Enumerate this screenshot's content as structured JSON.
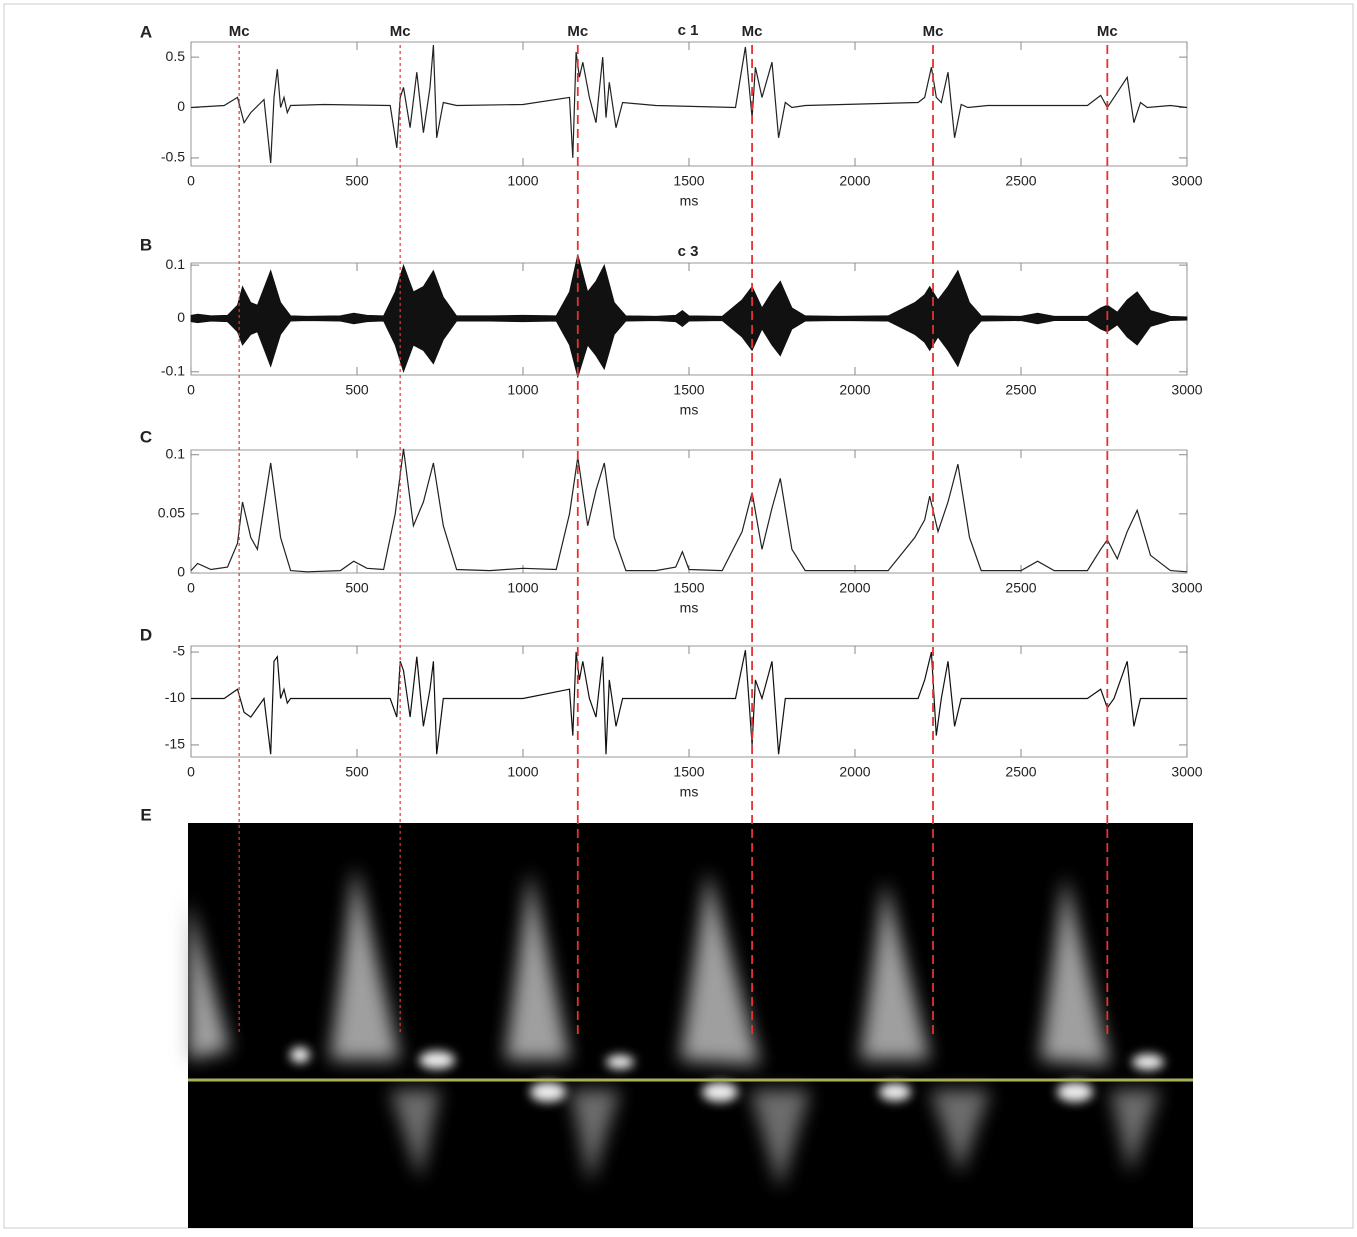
{
  "chart_data": [
    {
      "type": "line",
      "panel": "A",
      "title": "c 1",
      "xlabel": "ms",
      "x": [
        0,
        100,
        140,
        160,
        180,
        220,
        240,
        250,
        260,
        270,
        280,
        290,
        300,
        400,
        600,
        620,
        630,
        640,
        660,
        680,
        700,
        720,
        730,
        740,
        760,
        800,
        1000,
        1140,
        1150,
        1160,
        1170,
        1180,
        1200,
        1220,
        1240,
        1250,
        1260,
        1280,
        1300,
        1400,
        1640,
        1670,
        1690,
        1700,
        1720,
        1750,
        1770,
        1790,
        1810,
        1850,
        2190,
        2210,
        2230,
        2245,
        2260,
        2280,
        2300,
        2320,
        2340,
        2400,
        2700,
        2740,
        2760,
        2780,
        2820,
        2840,
        2860,
        2880,
        2950,
        3000
      ],
      "series": [
        {
          "color": "#222222",
          "values": [
            0,
            0.02,
            0.1,
            -0.15,
            -0.05,
            0.08,
            -0.55,
            0.1,
            0.38,
            0.0,
            0.1,
            -0.05,
            0.02,
            0.03,
            0.02,
            -0.4,
            0.1,
            0.2,
            -0.2,
            0.35,
            -0.25,
            0.2,
            0.62,
            -0.3,
            0.05,
            0.02,
            0.03,
            0.1,
            -0.5,
            0.55,
            0.3,
            0.45,
            0.1,
            -0.15,
            0.5,
            -0.1,
            0.25,
            -0.2,
            0.05,
            0.02,
            0.0,
            0.6,
            -0.1,
            0.4,
            0.1,
            0.45,
            -0.3,
            0.05,
            0.0,
            0.02,
            0.05,
            0.1,
            0.4,
            0.1,
            0.05,
            0.35,
            -0.3,
            0.03,
            0.0,
            0.02,
            0.02,
            0.12,
            0.0,
            0.1,
            0.3,
            -0.15,
            0.05,
            0.0,
            0.02,
            0.0
          ]
        }
      ],
      "xlim": [
        0,
        3000
      ],
      "xticks": [
        0,
        500,
        1000,
        1500,
        2000,
        2500,
        3000
      ],
      "ylim": [
        -0.58,
        0.65
      ],
      "yticks": [
        -0.5,
        0,
        0.5
      ]
    },
    {
      "type": "band",
      "panel": "B",
      "title": "c 3",
      "xlabel": "ms",
      "x": [
        0,
        20,
        60,
        110,
        140,
        155,
        180,
        200,
        240,
        270,
        300,
        350,
        450,
        490,
        530,
        580,
        615,
        640,
        670,
        700,
        730,
        760,
        800,
        900,
        1000,
        1100,
        1140,
        1165,
        1195,
        1220,
        1245,
        1275,
        1310,
        1400,
        1460,
        1480,
        1500,
        1600,
        1660,
        1690,
        1720,
        1750,
        1775,
        1810,
        1850,
        1950,
        2100,
        2180,
        2210,
        2225,
        2250,
        2280,
        2310,
        2345,
        2380,
        2500,
        2550,
        2600,
        2700,
        2740,
        2760,
        2790,
        2820,
        2850,
        2890,
        2950,
        3000
      ],
      "series": [
        {
          "color": "#111111",
          "values": [
            0.006,
            0.008,
            0.005,
            0.006,
            0.025,
            0.06,
            0.03,
            0.025,
            0.09,
            0.03,
            0.005,
            0.004,
            0.005,
            0.01,
            0.006,
            0.005,
            0.05,
            0.1,
            0.05,
            0.06,
            0.09,
            0.04,
            0.005,
            0.005,
            0.006,
            0.005,
            0.05,
            0.12,
            0.05,
            0.07,
            0.1,
            0.03,
            0.005,
            0.004,
            0.006,
            0.015,
            0.005,
            0.004,
            0.035,
            0.06,
            0.02,
            0.05,
            0.07,
            0.02,
            0.005,
            0.004,
            0.005,
            0.03,
            0.045,
            0.06,
            0.035,
            0.06,
            0.09,
            0.03,
            0.005,
            0.004,
            0.01,
            0.004,
            0.004,
            0.02,
            0.025,
            0.012,
            0.035,
            0.05,
            0.015,
            0.004,
            0.003
          ]
        },
        {
          "color": "#111111",
          "values": [
            -0.006,
            -0.008,
            -0.005,
            -0.006,
            -0.025,
            -0.05,
            -0.03,
            -0.025,
            -0.09,
            -0.03,
            -0.005,
            -0.004,
            -0.005,
            -0.01,
            -0.006,
            -0.005,
            -0.05,
            -0.1,
            -0.05,
            -0.06,
            -0.085,
            -0.04,
            -0.005,
            -0.005,
            -0.006,
            -0.005,
            -0.05,
            -0.11,
            -0.05,
            -0.07,
            -0.095,
            -0.03,
            -0.005,
            -0.004,
            -0.006,
            -0.015,
            -0.005,
            -0.004,
            -0.035,
            -0.06,
            -0.02,
            -0.05,
            -0.07,
            -0.02,
            -0.005,
            -0.004,
            -0.005,
            -0.03,
            -0.045,
            -0.06,
            -0.035,
            -0.06,
            -0.09,
            -0.03,
            -0.005,
            -0.004,
            -0.01,
            -0.004,
            -0.004,
            -0.02,
            -0.025,
            -0.012,
            -0.035,
            -0.05,
            -0.015,
            -0.004,
            -0.003
          ]
        }
      ],
      "xlim": [
        0,
        3000
      ],
      "xticks": [
        0,
        500,
        1000,
        1500,
        2000,
        2500,
        3000
      ],
      "ylim": [
        -0.106,
        0.104
      ],
      "yticks": [
        -0.1,
        0,
        0.1
      ]
    },
    {
      "type": "line",
      "panel": "C",
      "xlabel": "ms",
      "x": [
        0,
        20,
        60,
        110,
        140,
        155,
        180,
        200,
        240,
        270,
        300,
        350,
        450,
        490,
        530,
        580,
        615,
        640,
        670,
        700,
        730,
        760,
        800,
        900,
        1000,
        1100,
        1140,
        1165,
        1195,
        1220,
        1245,
        1275,
        1310,
        1400,
        1460,
        1480,
        1500,
        1600,
        1660,
        1690,
        1720,
        1750,
        1775,
        1810,
        1850,
        1950,
        2100,
        2180,
        2210,
        2225,
        2250,
        2280,
        2310,
        2345,
        2380,
        2500,
        2550,
        2600,
        2700,
        2740,
        2760,
        2790,
        2820,
        2850,
        2890,
        2950,
        3000
      ],
      "series": [
        {
          "color": "#222222",
          "values": [
            0.002,
            0.008,
            0.003,
            0.005,
            0.025,
            0.06,
            0.03,
            0.02,
            0.093,
            0.03,
            0.002,
            0.001,
            0.002,
            0.01,
            0.004,
            0.003,
            0.05,
            0.105,
            0.04,
            0.06,
            0.093,
            0.04,
            0.003,
            0.002,
            0.004,
            0.003,
            0.05,
            0.098,
            0.04,
            0.07,
            0.093,
            0.03,
            0.002,
            0.002,
            0.005,
            0.018,
            0.003,
            0.002,
            0.035,
            0.068,
            0.02,
            0.055,
            0.08,
            0.02,
            0.002,
            0.002,
            0.002,
            0.03,
            0.045,
            0.065,
            0.035,
            0.06,
            0.092,
            0.03,
            0.002,
            0.002,
            0.01,
            0.002,
            0.002,
            0.02,
            0.028,
            0.012,
            0.035,
            0.053,
            0.015,
            0.002,
            0.001
          ]
        }
      ],
      "xlim": [
        0,
        3000
      ],
      "xticks": [
        0,
        500,
        1000,
        1500,
        2000,
        2500,
        3000
      ],
      "ylim": [
        0,
        0.104
      ],
      "yticks": [
        0,
        0.05,
        0.1
      ]
    },
    {
      "type": "line",
      "panel": "D",
      "xlabel": "ms",
      "x": [
        0,
        100,
        140,
        160,
        180,
        220,
        240,
        250,
        260,
        270,
        280,
        290,
        300,
        400,
        600,
        620,
        630,
        640,
        660,
        680,
        700,
        720,
        730,
        740,
        760,
        800,
        1000,
        1140,
        1150,
        1160,
        1170,
        1180,
        1200,
        1220,
        1240,
        1250,
        1260,
        1280,
        1300,
        1400,
        1640,
        1670,
        1690,
        1700,
        1720,
        1750,
        1770,
        1790,
        1810,
        1850,
        2190,
        2210,
        2230,
        2245,
        2260,
        2280,
        2300,
        2320,
        2340,
        2400,
        2700,
        2740,
        2760,
        2780,
        2820,
        2840,
        2860,
        2880,
        2950,
        3000
      ],
      "series": [
        {
          "color": "#111111",
          "values": [
            -10,
            -10,
            -9,
            -11.5,
            -12,
            -10,
            -16,
            -6,
            -5.5,
            -10,
            -9,
            -10.5,
            -10,
            -10,
            -10,
            -12,
            -6,
            -7,
            -12,
            -5.5,
            -13,
            -9,
            -6,
            -16,
            -10,
            -10,
            -10,
            -9,
            -14,
            -5,
            -8,
            -6,
            -10,
            -12,
            -5.5,
            -16,
            -8,
            -13,
            -10,
            -10,
            -10,
            -4.8,
            -15,
            -8,
            -10,
            -6,
            -16,
            -10,
            -10,
            -10,
            -10,
            -8,
            -5,
            -14,
            -10,
            -6,
            -13,
            -10,
            -10,
            -10,
            -10,
            -9,
            -11,
            -10,
            -6,
            -13,
            -10,
            -10,
            -10,
            -10
          ]
        }
      ],
      "xlim": [
        0,
        3000
      ],
      "xticks": [
        0,
        500,
        1000,
        1500,
        2000,
        2500,
        3000
      ],
      "ylim": [
        -16.3,
        -4.35
      ],
      "yticks": [
        -15,
        -10,
        -5
      ]
    }
  ],
  "markers": [
    {
      "label": "Mc",
      "x": 145
    },
    {
      "label": "Mc",
      "x": 630
    },
    {
      "label": "Mc",
      "x": 1165
    },
    {
      "label": "Mc",
      "x": 1690
    },
    {
      "label": "Mc",
      "x": 2235
    },
    {
      "label": "Mc",
      "x": 2760
    }
  ],
  "image_panel": {
    "panel": "E"
  }
}
